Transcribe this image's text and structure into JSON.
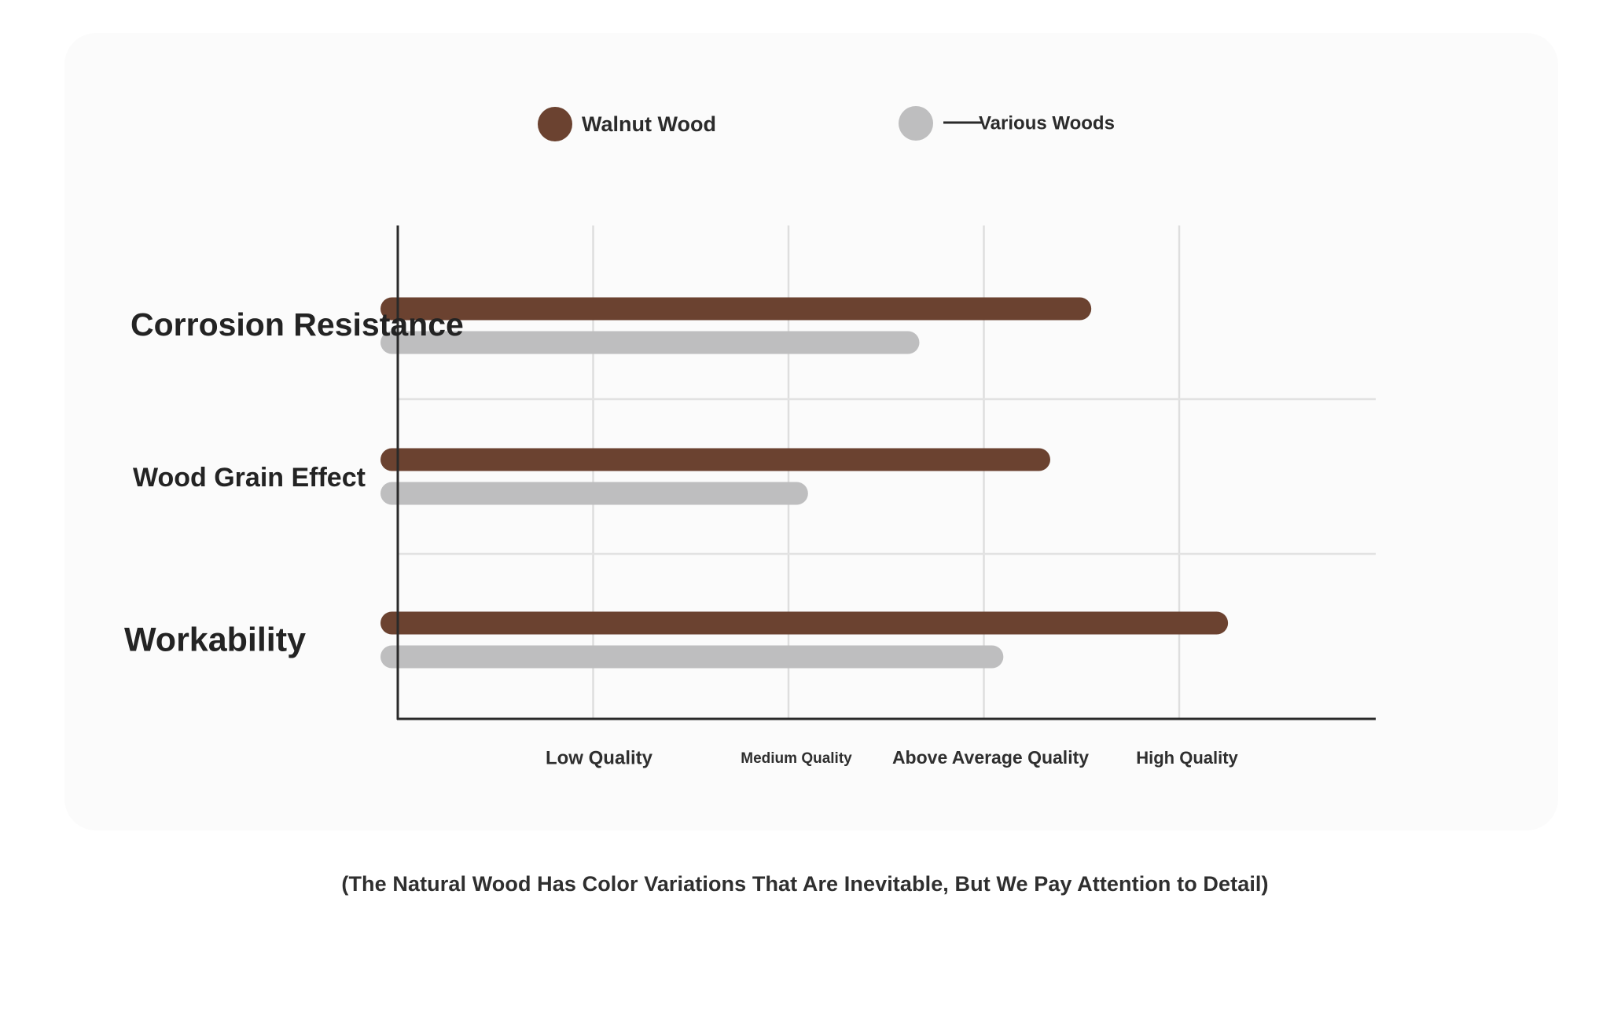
{
  "chart_data": {
    "type": "bar",
    "orientation": "horizontal",
    "categories": [
      "Corrosion Resistance",
      "Wood Grain Effect",
      "Workability"
    ],
    "tick_labels": [
      "Low Quality",
      "Medium Quality",
      "Above Average Quality",
      "High Quality"
    ],
    "xlim": [
      0,
      5
    ],
    "series": [
      {
        "name": "Walnut Wood",
        "color": "#6b4230",
        "values": [
          3.55,
          3.34,
          4.25
        ]
      },
      {
        "name": "Various Woods",
        "color": "#bebebf",
        "values": [
          2.67,
          2.1,
          3.1
        ]
      }
    ],
    "legend": {
      "position": "top"
    },
    "grid": true
  },
  "footnote": "(The Natural Wood Has Color Variations That Are Inevitable, But We Pay Attention to Detail)"
}
